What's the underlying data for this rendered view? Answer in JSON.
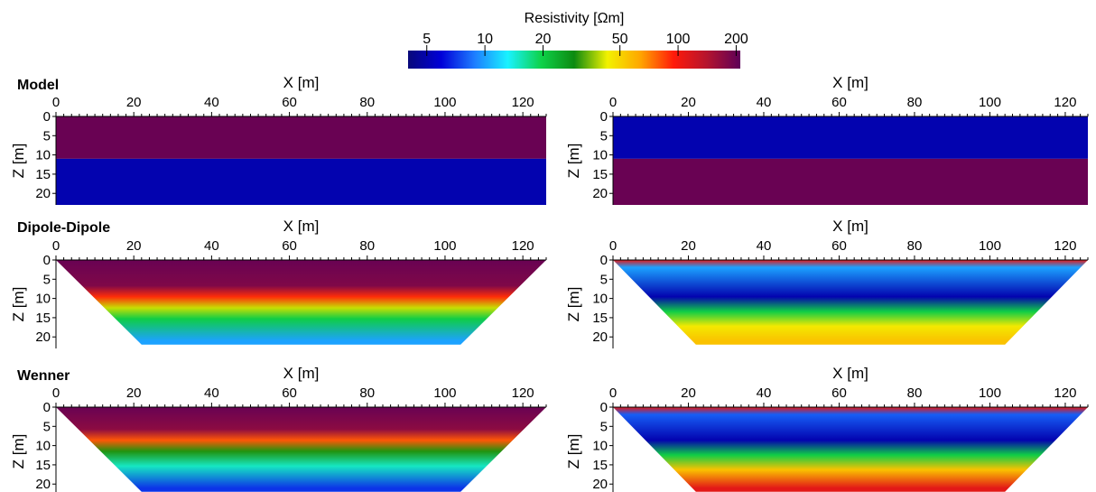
{
  "colorbar": {
    "title": "Resistivity [Ωm]",
    "ticks": [
      "5",
      "10",
      "20",
      "50",
      "100",
      "200"
    ],
    "tick_values": [
      5,
      10,
      20,
      50,
      100,
      200
    ],
    "range": [
      4,
      210
    ],
    "scale": "log",
    "colors": [
      "#08087a",
      "#0000d8",
      "#1e7dff",
      "#19f2ff",
      "#0fd24a",
      "#0c8a10",
      "#f2f200",
      "#ffa500",
      "#ff1a0a",
      "#b4142e",
      "#5e0058"
    ]
  },
  "axes": {
    "xlabel": "X [m]",
    "ylabel": "Z [m]",
    "x_ticks": [
      "0",
      "20",
      "40",
      "60",
      "80",
      "100",
      "120"
    ],
    "y_ticks": [
      "0",
      "5",
      "10",
      "15",
      "20"
    ],
    "x_range": [
      0,
      126
    ],
    "y_range": [
      0,
      23
    ]
  },
  "rows": [
    {
      "label": "Model"
    },
    {
      "label": "Dipole-Dipole"
    },
    {
      "label": "Wenner"
    }
  ],
  "chart_data": [
    {
      "type": "heatmap",
      "row": "Model",
      "panel": "left",
      "layers": [
        {
          "z_top": 0,
          "z_bottom": 11,
          "resistivity": 200
        },
        {
          "z_top": 11,
          "z_bottom": 23,
          "resistivity": 5
        }
      ]
    },
    {
      "type": "heatmap",
      "row": "Model",
      "panel": "right",
      "layers": [
        {
          "z_top": 0,
          "z_bottom": 11,
          "resistivity": 5
        },
        {
          "z_top": 11,
          "z_bottom": 23,
          "resistivity": 200
        }
      ]
    },
    {
      "type": "heatmap",
      "row": "Dipole-Dipole",
      "panel": "left",
      "depth_profile": [
        {
          "z": 0,
          "resistivity": 200
        },
        {
          "z": 7,
          "resistivity": 180
        },
        {
          "z": 10,
          "resistivity": 90
        },
        {
          "z": 13,
          "resistivity": 40
        },
        {
          "z": 16,
          "resistivity": 20
        },
        {
          "z": 22,
          "resistivity": 10
        }
      ]
    },
    {
      "type": "heatmap",
      "row": "Dipole-Dipole",
      "panel": "right",
      "depth_profile": [
        {
          "z": 0,
          "resistivity": 110
        },
        {
          "z": 2,
          "resistivity": 10
        },
        {
          "z": 10,
          "resistivity": 5
        },
        {
          "z": 14,
          "resistivity": 20
        },
        {
          "z": 18,
          "resistivity": 45
        },
        {
          "z": 22,
          "resistivity": 55
        }
      ]
    },
    {
      "type": "heatmap",
      "row": "Wenner",
      "panel": "left",
      "depth_profile": [
        {
          "z": 0,
          "resistivity": 200
        },
        {
          "z": 6,
          "resistivity": 170
        },
        {
          "z": 9,
          "resistivity": 80
        },
        {
          "z": 12,
          "resistivity": 30
        },
        {
          "z": 16,
          "resistivity": 15
        },
        {
          "z": 22,
          "resistivity": 7
        }
      ]
    },
    {
      "type": "heatmap",
      "row": "Wenner",
      "panel": "right",
      "depth_profile": [
        {
          "z": 0,
          "resistivity": 110
        },
        {
          "z": 2,
          "resistivity": 8
        },
        {
          "z": 9,
          "resistivity": 5
        },
        {
          "z": 13,
          "resistivity": 20
        },
        {
          "z": 17,
          "resistivity": 55
        },
        {
          "z": 22,
          "resistivity": 110
        }
      ]
    }
  ]
}
